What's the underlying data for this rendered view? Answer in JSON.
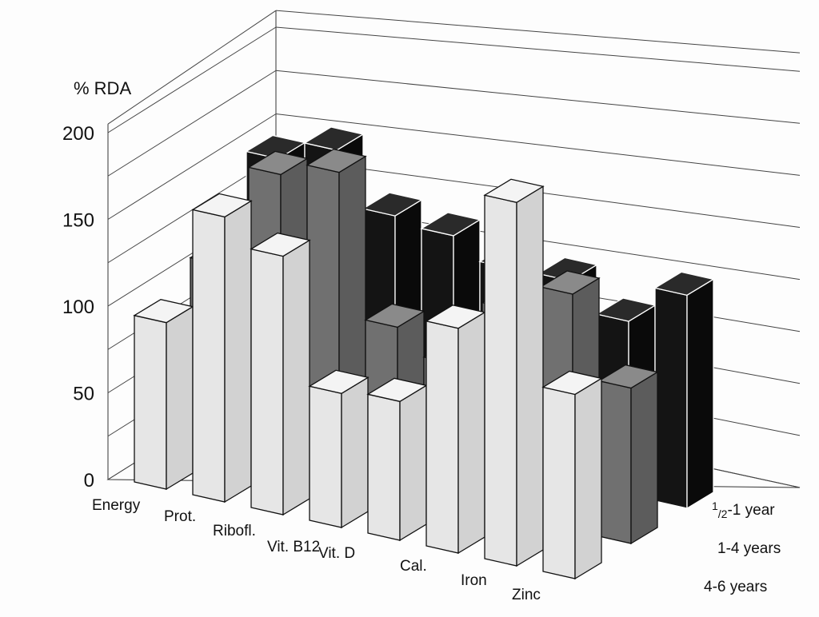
{
  "chart_data": {
    "type": "bar",
    "subtype": "3d-grouped",
    "title": "",
    "ylabel": "% RDA",
    "xlabel": "",
    "ylim": [
      0,
      200
    ],
    "yticks": [
      "0",
      "50",
      "100",
      "150",
      "200"
    ],
    "grid": true,
    "categories": [
      "Energy",
      "Prot.",
      "Ribofl.",
      "Vit. B12",
      "Vit. D",
      "Cal.",
      "Iron",
      "Zinc"
    ],
    "series": [
      {
        "name": "1/2-1 year",
        "label_main": "1",
        "label_sub": "/2",
        "label_rest": "-1 year",
        "color": "#111111",
        "values": [
          150,
          156,
          122,
          114,
          100,
          97,
          81,
          96
        ]
      },
      {
        "name": "1-4 years",
        "color": "#6c6c6c",
        "values": [
          109,
          162,
          164,
          85,
          70,
          100,
          110,
          70
        ]
      },
      {
        "name": "4-6 years",
        "color": "#e2e2e2",
        "values": [
          96,
          158,
          138,
          69,
          69,
          108,
          169,
          83
        ]
      }
    ]
  }
}
